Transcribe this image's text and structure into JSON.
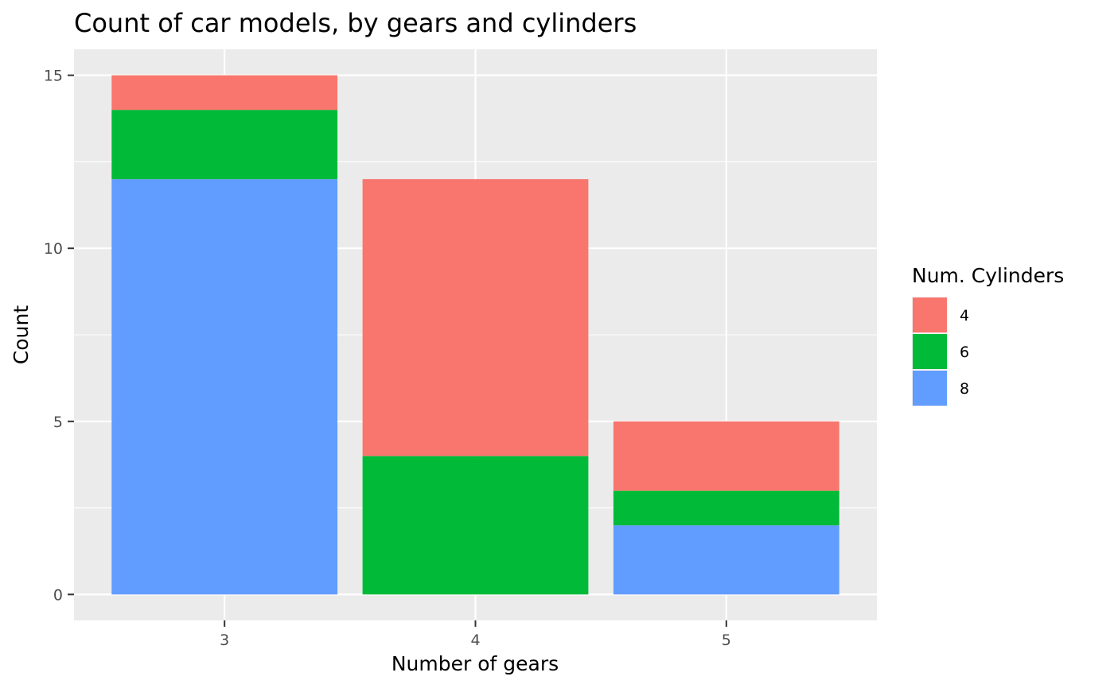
{
  "chart_data": {
    "type": "bar",
    "stacked": true,
    "title": "Count of car models, by gears and cylinders",
    "xlabel": "Number of gears",
    "ylabel": "Count",
    "categories": [
      "3",
      "4",
      "5"
    ],
    "series": [
      {
        "name": "8",
        "color": "#619CFF",
        "values": [
          12,
          0,
          2
        ]
      },
      {
        "name": "6",
        "color": "#00BA38",
        "values": [
          2,
          4,
          1
        ]
      },
      {
        "name": "4",
        "color": "#F8766D",
        "values": [
          1,
          8,
          2
        ]
      }
    ],
    "ylim": [
      -0.75,
      15.75
    ],
    "yticks": [
      0,
      5,
      10,
      15
    ],
    "grid": true,
    "legend": {
      "title": "Num. Cylinders",
      "position": "right",
      "order": [
        "4",
        "6",
        "8"
      ]
    }
  }
}
